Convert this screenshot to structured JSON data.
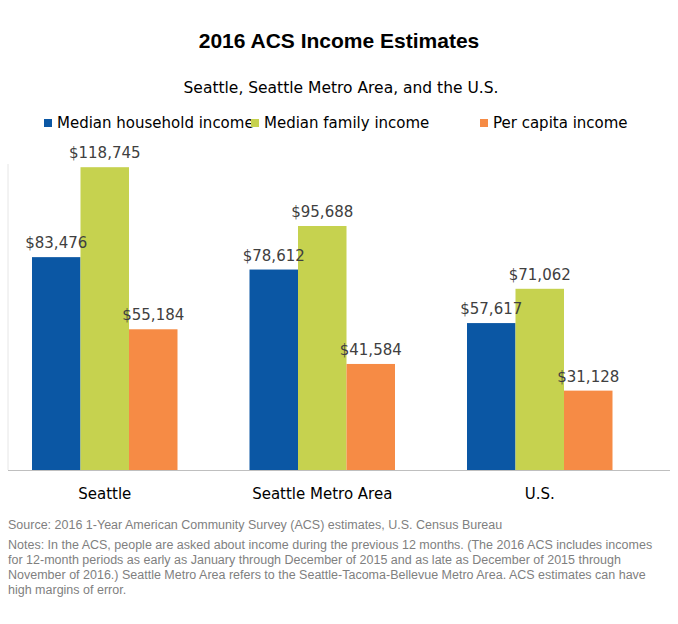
{
  "chart_data": {
    "type": "bar",
    "title": "2016 ACS Income Estimates",
    "subtitle": "Seattle, Seattle Metro Area, and the U.S.",
    "categories": [
      "Seattle",
      "Seattle Metro Area",
      "U.S."
    ],
    "series": [
      {
        "name": "Median household income",
        "color": "#0b57a4",
        "values": [
          83476,
          78612,
          57617
        ],
        "value_labels": [
          "$83,476",
          "$78,612",
          "$57,617"
        ]
      },
      {
        "name": "Median family income",
        "color": "#c6d24f",
        "values": [
          118745,
          95688,
          71062
        ],
        "value_labels": [
          "$118,745",
          "$95,688",
          "$71,062"
        ]
      },
      {
        "name": "Per capita income",
        "color": "#f68b45",
        "values": [
          55184,
          41584,
          31128
        ],
        "value_labels": [
          "$55,184",
          "$41,584",
          "$31,128"
        ]
      }
    ],
    "ylim": [
      0,
      120000
    ],
    "data_labels": true,
    "tick_labels": "x",
    "legend": "top",
    "source": "Source: 2016 1-Year American Community Survey (ACS) estimates, U.S. Census Bureau",
    "notes": "Notes: In the ACS, people are asked about income during the previous 12 months. (The 2016 ACS includes incomes for 12-month periods as early as January through December of 2015 and as late as December of 2015 through November of 2016.) Seattle Metro Area refers to the Seattle-Tacoma-Bellevue Metro Area. ACS estimates can have high margins of error."
  }
}
